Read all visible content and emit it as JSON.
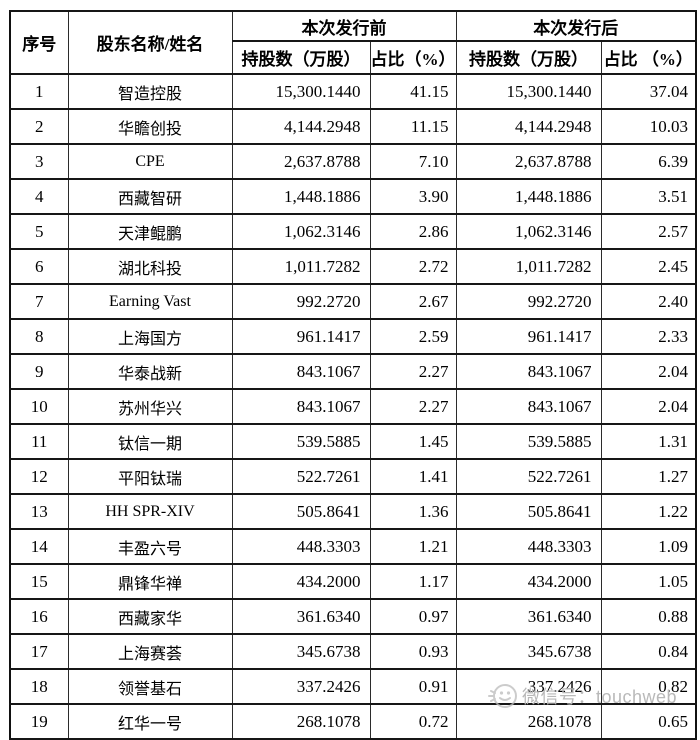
{
  "table": {
    "headers": {
      "col_no": "序号",
      "col_name": "股东名称/姓名",
      "group_before": "本次发行前",
      "group_after": "本次发行后",
      "col_shares_before": "持股数（万股）",
      "col_pct_before": "占比（%）",
      "col_shares_after": "持股数（万股）",
      "col_pct_after": "占比 （%）"
    },
    "rows": [
      {
        "no": "1",
        "name": "智造控股",
        "shares_before": "15,300.1440",
        "pct_before": "41.15",
        "shares_after": "15,300.1440",
        "pct_after": "37.04"
      },
      {
        "no": "2",
        "name": "华瞻创投",
        "shares_before": "4,144.2948",
        "pct_before": "11.15",
        "shares_after": "4,144.2948",
        "pct_after": "10.03"
      },
      {
        "no": "3",
        "name": "CPE",
        "shares_before": "2,637.8788",
        "pct_before": "7.10",
        "shares_after": "2,637.8788",
        "pct_after": "6.39"
      },
      {
        "no": "4",
        "name": "西藏智研",
        "shares_before": "1,448.1886",
        "pct_before": "3.90",
        "shares_after": "1,448.1886",
        "pct_after": "3.51"
      },
      {
        "no": "5",
        "name": "天津鲲鹏",
        "shares_before": "1,062.3146",
        "pct_before": "2.86",
        "shares_after": "1,062.3146",
        "pct_after": "2.57"
      },
      {
        "no": "6",
        "name": "湖北科投",
        "shares_before": "1,011.7282",
        "pct_before": "2.72",
        "shares_after": "1,011.7282",
        "pct_after": "2.45"
      },
      {
        "no": "7",
        "name": "Earning Vast",
        "shares_before": "992.2720",
        "pct_before": "2.67",
        "shares_after": "992.2720",
        "pct_after": "2.40"
      },
      {
        "no": "8",
        "name": "上海国方",
        "shares_before": "961.1417",
        "pct_before": "2.59",
        "shares_after": "961.1417",
        "pct_after": "2.33"
      },
      {
        "no": "9",
        "name": "华泰战新",
        "shares_before": "843.1067",
        "pct_before": "2.27",
        "shares_after": "843.1067",
        "pct_after": "2.04"
      },
      {
        "no": "10",
        "name": "苏州华兴",
        "shares_before": "843.1067",
        "pct_before": "2.27",
        "shares_after": "843.1067",
        "pct_after": "2.04"
      },
      {
        "no": "11",
        "name": "钛信一期",
        "shares_before": "539.5885",
        "pct_before": "1.45",
        "shares_after": "539.5885",
        "pct_after": "1.31"
      },
      {
        "no": "12",
        "name": "平阳钛瑞",
        "shares_before": "522.7261",
        "pct_before": "1.41",
        "shares_after": "522.7261",
        "pct_after": "1.27"
      },
      {
        "no": "13",
        "name": "HH SPR-XIV",
        "shares_before": "505.8641",
        "pct_before": "1.36",
        "shares_after": "505.8641",
        "pct_after": "1.22"
      },
      {
        "no": "14",
        "name": "丰盈六号",
        "shares_before": "448.3303",
        "pct_before": "1.21",
        "shares_after": "448.3303",
        "pct_after": "1.09"
      },
      {
        "no": "15",
        "name": "鼎锋华禅",
        "shares_before": "434.2000",
        "pct_before": "1.17",
        "shares_after": "434.2000",
        "pct_after": "1.05"
      },
      {
        "no": "16",
        "name": "西藏家华",
        "shares_before": "361.6340",
        "pct_before": "0.97",
        "shares_after": "361.6340",
        "pct_after": "0.88"
      },
      {
        "no": "17",
        "name": "上海赛荟",
        "shares_before": "345.6738",
        "pct_before": "0.93",
        "shares_after": "345.6738",
        "pct_after": "0.84"
      },
      {
        "no": "18",
        "name": "领誉基石",
        "shares_before": "337.2426",
        "pct_before": "0.91",
        "shares_after": "337.2426",
        "pct_after": "0.82"
      },
      {
        "no": "19",
        "name": "红华一号",
        "shares_before": "268.1078",
        "pct_before": "0.72",
        "shares_after": "268.1078",
        "pct_after": "0.65"
      }
    ]
  },
  "watermark": {
    "icon": "wechat-smiley-icon",
    "text": "微信号：touchweb",
    "color": "#b9b9b9"
  }
}
